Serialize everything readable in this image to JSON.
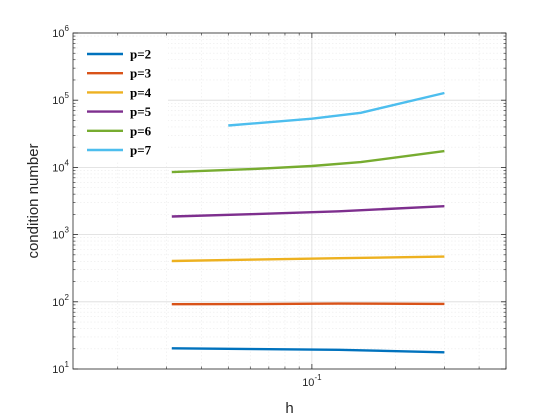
{
  "chart_data": {
    "type": "line",
    "xlabel": "h",
    "ylabel": "condition number",
    "xscale": "log",
    "yscale": "log",
    "xlim": [
      0.0138,
      0.5
    ],
    "ylim": [
      10,
      1000000
    ],
    "grid": true,
    "minor_grid": true,
    "legend_position": "top-left",
    "x_ticks": [
      {
        "value": 0.1,
        "base": "10",
        "exp": "-1"
      }
    ],
    "y_ticks": [
      {
        "value": 10,
        "base": "10",
        "exp": "1"
      },
      {
        "value": 100,
        "base": "10",
        "exp": "2"
      },
      {
        "value": 1000,
        "base": "10",
        "exp": "3"
      },
      {
        "value": 10000,
        "base": "10",
        "exp": "4"
      },
      {
        "value": 100000,
        "base": "10",
        "exp": "5"
      },
      {
        "value": 1000000,
        "base": "10",
        "exp": "6"
      }
    ],
    "series": [
      {
        "name": "p=2",
        "color": "#0072BD",
        "x": [
          0.0313,
          0.0625,
          0.125,
          0.3
        ],
        "values": [
          20.3,
          19.8,
          19.3,
          17.7
        ]
      },
      {
        "name": "p=3",
        "color": "#D95319",
        "x": [
          0.0313,
          0.0625,
          0.125,
          0.3
        ],
        "values": [
          92,
          92.5,
          94,
          93
        ]
      },
      {
        "name": "p=4",
        "color": "#EDB120",
        "x": [
          0.0313,
          0.0625,
          0.125,
          0.3
        ],
        "values": [
          405,
          425,
          445,
          470
        ]
      },
      {
        "name": "p=5",
        "color": "#7E2F8E",
        "x": [
          0.0313,
          0.0625,
          0.125,
          0.3
        ],
        "values": [
          1860,
          2020,
          2220,
          2650
        ]
      },
      {
        "name": "p=6",
        "color": "#77AC30",
        "x": [
          0.0313,
          0.0625,
          0.1,
          0.15,
          0.3
        ],
        "values": [
          8500,
          9500,
          10500,
          12000,
          17500
        ]
      },
      {
        "name": "p=7",
        "color": "#4DBEEE",
        "x": [
          0.05,
          0.1,
          0.15,
          0.3
        ],
        "values": [
          42000,
          53000,
          65000,
          128000
        ]
      }
    ]
  }
}
